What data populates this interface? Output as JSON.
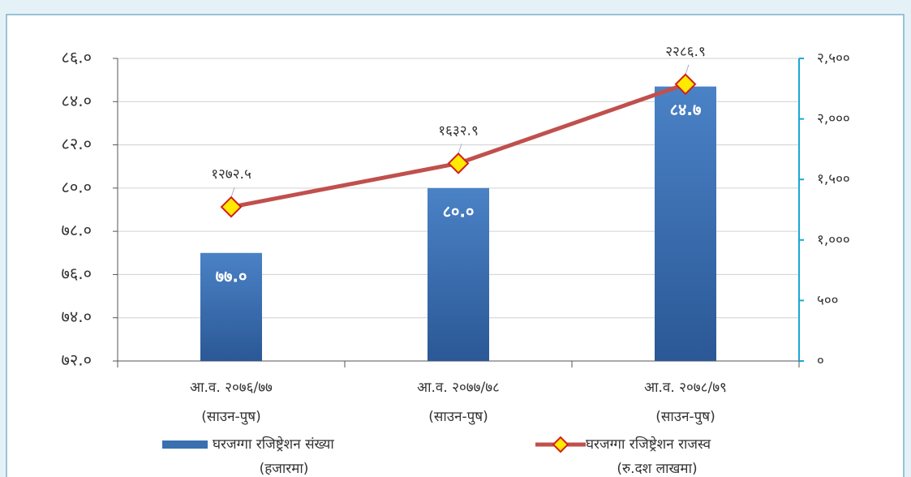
{
  "chart_data": {
    "type": "bar-line",
    "categories": [
      [
        "आ.व. २०७६/७७",
        "(साउन-पुष)"
      ],
      [
        "आ.व. २०७७/७८",
        "(साउन-पुष)"
      ],
      [
        "आ.व. २०७८/७९",
        "(साउन-पुष)"
      ]
    ],
    "series": [
      {
        "name": [
          "घरजग्गा रजिष्ट्रेशन संख्या",
          "(हजारमा)"
        ],
        "type": "bar",
        "color": "#3a6fb0",
        "values": [
          77.0,
          80.0,
          84.7
        ],
        "value_labels": [
          "७७.०",
          "८०.०",
          "८४.७"
        ]
      },
      {
        "name": [
          "घरजग्गा रजिष्ट्रेशन राजस्व",
          "(रु.दश लाखमा)"
        ],
        "type": "line",
        "color": "#c0504d",
        "axis": "y2",
        "values": [
          1272.5,
          1632.9,
          2286.9
        ],
        "value_labels": [
          "१२७२.५",
          "१६३२.९",
          "२२८६.९"
        ]
      }
    ],
    "ylim": [
      72,
      86
    ],
    "yticks": [
      {
        "value": 72,
        "label": "७२.०"
      },
      {
        "value": 74,
        "label": "७४.०"
      },
      {
        "value": 76,
        "label": "७६.०"
      },
      {
        "value": 78,
        "label": "७८.०"
      },
      {
        "value": 80,
        "label": "८०.०"
      },
      {
        "value": 82,
        "label": "८२.०"
      },
      {
        "value": 84,
        "label": "८४.०"
      },
      {
        "value": 86,
        "label": "८६.०"
      }
    ],
    "y2lim": [
      0,
      2500
    ],
    "y2ticks": [
      {
        "value": 0,
        "label": "०"
      },
      {
        "value": 500,
        "label": "५००"
      },
      {
        "value": 1000,
        "label": "१,०००"
      },
      {
        "value": 1500,
        "label": "१,५००"
      },
      {
        "value": 2000,
        "label": "२,०००"
      },
      {
        "value": 2500,
        "label": "२,५००"
      }
    ],
    "grid": true
  }
}
